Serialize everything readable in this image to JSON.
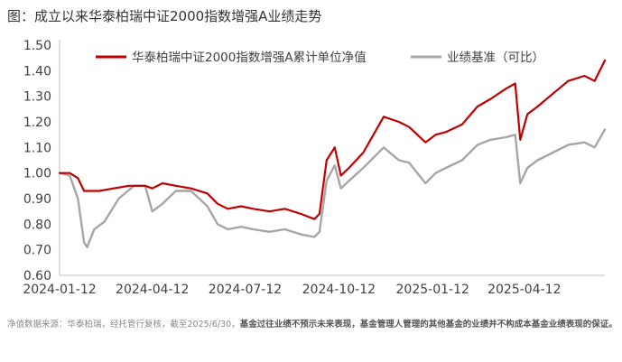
{
  "figure_title": "图：成立以来华泰柏瑞中证2000指数增强A业绩走势",
  "footnote": {
    "plain": "净值数据来源：华泰柏瑞，经托管行复核，截至2025/6/30，",
    "bold": "基金过往业绩不预示未来表现，基金管理人管理的其他基金的业绩并不构成本基金业绩表现的保证。"
  },
  "chart_data": {
    "type": "line",
    "title": "",
    "xlabel": "",
    "ylabel": "",
    "ylim": [
      0.6,
      1.5
    ],
    "yticks": [
      "0.60",
      "0.70",
      "0.80",
      "0.90",
      "1.00",
      "1.10",
      "1.20",
      "1.30",
      "1.40",
      "1.50"
    ],
    "xticks": [
      "2024-01-12",
      "2024-04-12",
      "2024-07-12",
      "2024-10-12",
      "2025-01-12",
      "2025-04-12"
    ],
    "xlim": [
      "2024-01-12",
      "2025-06-30"
    ],
    "grid": false,
    "legend": "top",
    "series": [
      {
        "name": "华泰柏瑞中证2000指数增强A累计单位净值",
        "color": "#c00000",
        "points": [
          [
            "2024-01-12",
            1.0
          ],
          [
            "2024-01-22",
            1.0
          ],
          [
            "2024-01-30",
            0.98
          ],
          [
            "2024-02-05",
            0.93
          ],
          [
            "2024-02-20",
            0.93
          ],
          [
            "2024-03-05",
            0.94
          ],
          [
            "2024-03-20",
            0.95
          ],
          [
            "2024-04-05",
            0.95
          ],
          [
            "2024-04-12",
            0.94
          ],
          [
            "2024-04-22",
            0.96
          ],
          [
            "2024-05-05",
            0.95
          ],
          [
            "2024-05-20",
            0.94
          ],
          [
            "2024-06-05",
            0.92
          ],
          [
            "2024-06-15",
            0.88
          ],
          [
            "2024-06-25",
            0.86
          ],
          [
            "2024-07-08",
            0.87
          ],
          [
            "2024-07-20",
            0.86
          ],
          [
            "2024-08-05",
            0.85
          ],
          [
            "2024-08-20",
            0.86
          ],
          [
            "2024-09-05",
            0.84
          ],
          [
            "2024-09-18",
            0.82
          ],
          [
            "2024-09-23",
            0.84
          ],
          [
            "2024-09-30",
            1.05
          ],
          [
            "2024-10-08",
            1.1
          ],
          [
            "2024-10-14",
            0.99
          ],
          [
            "2024-10-22",
            1.02
          ],
          [
            "2024-11-05",
            1.08
          ],
          [
            "2024-11-15",
            1.15
          ],
          [
            "2024-11-25",
            1.22
          ],
          [
            "2024-12-10",
            1.2
          ],
          [
            "2024-12-20",
            1.18
          ],
          [
            "2025-01-05",
            1.12
          ],
          [
            "2025-01-15",
            1.15
          ],
          [
            "2025-01-25",
            1.16
          ],
          [
            "2025-02-10",
            1.19
          ],
          [
            "2025-02-25",
            1.26
          ],
          [
            "2025-03-10",
            1.29
          ],
          [
            "2025-03-25",
            1.33
          ],
          [
            "2025-04-03",
            1.35
          ],
          [
            "2025-04-08",
            1.13
          ],
          [
            "2025-04-15",
            1.23
          ],
          [
            "2025-04-25",
            1.26
          ],
          [
            "2025-05-10",
            1.31
          ],
          [
            "2025-05-25",
            1.36
          ],
          [
            "2025-06-10",
            1.38
          ],
          [
            "2025-06-20",
            1.36
          ],
          [
            "2025-06-30",
            1.44
          ]
        ]
      },
      {
        "name": "业绩基准（可比）",
        "color": "#a6a6a6",
        "points": [
          [
            "2024-01-12",
            1.0
          ],
          [
            "2024-01-22",
            0.99
          ],
          [
            "2024-01-30",
            0.9
          ],
          [
            "2024-02-05",
            0.73
          ],
          [
            "2024-02-08",
            0.71
          ],
          [
            "2024-02-15",
            0.78
          ],
          [
            "2024-02-25",
            0.81
          ],
          [
            "2024-03-10",
            0.9
          ],
          [
            "2024-03-25",
            0.95
          ],
          [
            "2024-04-05",
            0.95
          ],
          [
            "2024-04-12",
            0.85
          ],
          [
            "2024-04-22",
            0.88
          ],
          [
            "2024-05-05",
            0.93
          ],
          [
            "2024-05-20",
            0.93
          ],
          [
            "2024-06-05",
            0.87
          ],
          [
            "2024-06-15",
            0.8
          ],
          [
            "2024-06-25",
            0.78
          ],
          [
            "2024-07-08",
            0.79
          ],
          [
            "2024-07-20",
            0.78
          ],
          [
            "2024-08-05",
            0.77
          ],
          [
            "2024-08-20",
            0.78
          ],
          [
            "2024-09-05",
            0.76
          ],
          [
            "2024-09-18",
            0.75
          ],
          [
            "2024-09-23",
            0.77
          ],
          [
            "2024-09-30",
            0.97
          ],
          [
            "2024-10-08",
            1.03
          ],
          [
            "2024-10-14",
            0.94
          ],
          [
            "2024-10-22",
            0.97
          ],
          [
            "2024-11-05",
            1.02
          ],
          [
            "2024-11-15",
            1.06
          ],
          [
            "2024-11-25",
            1.1
          ],
          [
            "2024-12-10",
            1.05
          ],
          [
            "2024-12-20",
            1.04
          ],
          [
            "2025-01-05",
            0.96
          ],
          [
            "2025-01-15",
            1.0
          ],
          [
            "2025-01-25",
            1.02
          ],
          [
            "2025-02-10",
            1.05
          ],
          [
            "2025-02-25",
            1.11
          ],
          [
            "2025-03-10",
            1.13
          ],
          [
            "2025-03-25",
            1.14
          ],
          [
            "2025-04-03",
            1.15
          ],
          [
            "2025-04-08",
            0.96
          ],
          [
            "2025-04-15",
            1.02
          ],
          [
            "2025-04-25",
            1.05
          ],
          [
            "2025-05-10",
            1.08
          ],
          [
            "2025-05-25",
            1.11
          ],
          [
            "2025-06-10",
            1.12
          ],
          [
            "2025-06-20",
            1.1
          ],
          [
            "2025-06-30",
            1.17
          ]
        ]
      }
    ]
  }
}
